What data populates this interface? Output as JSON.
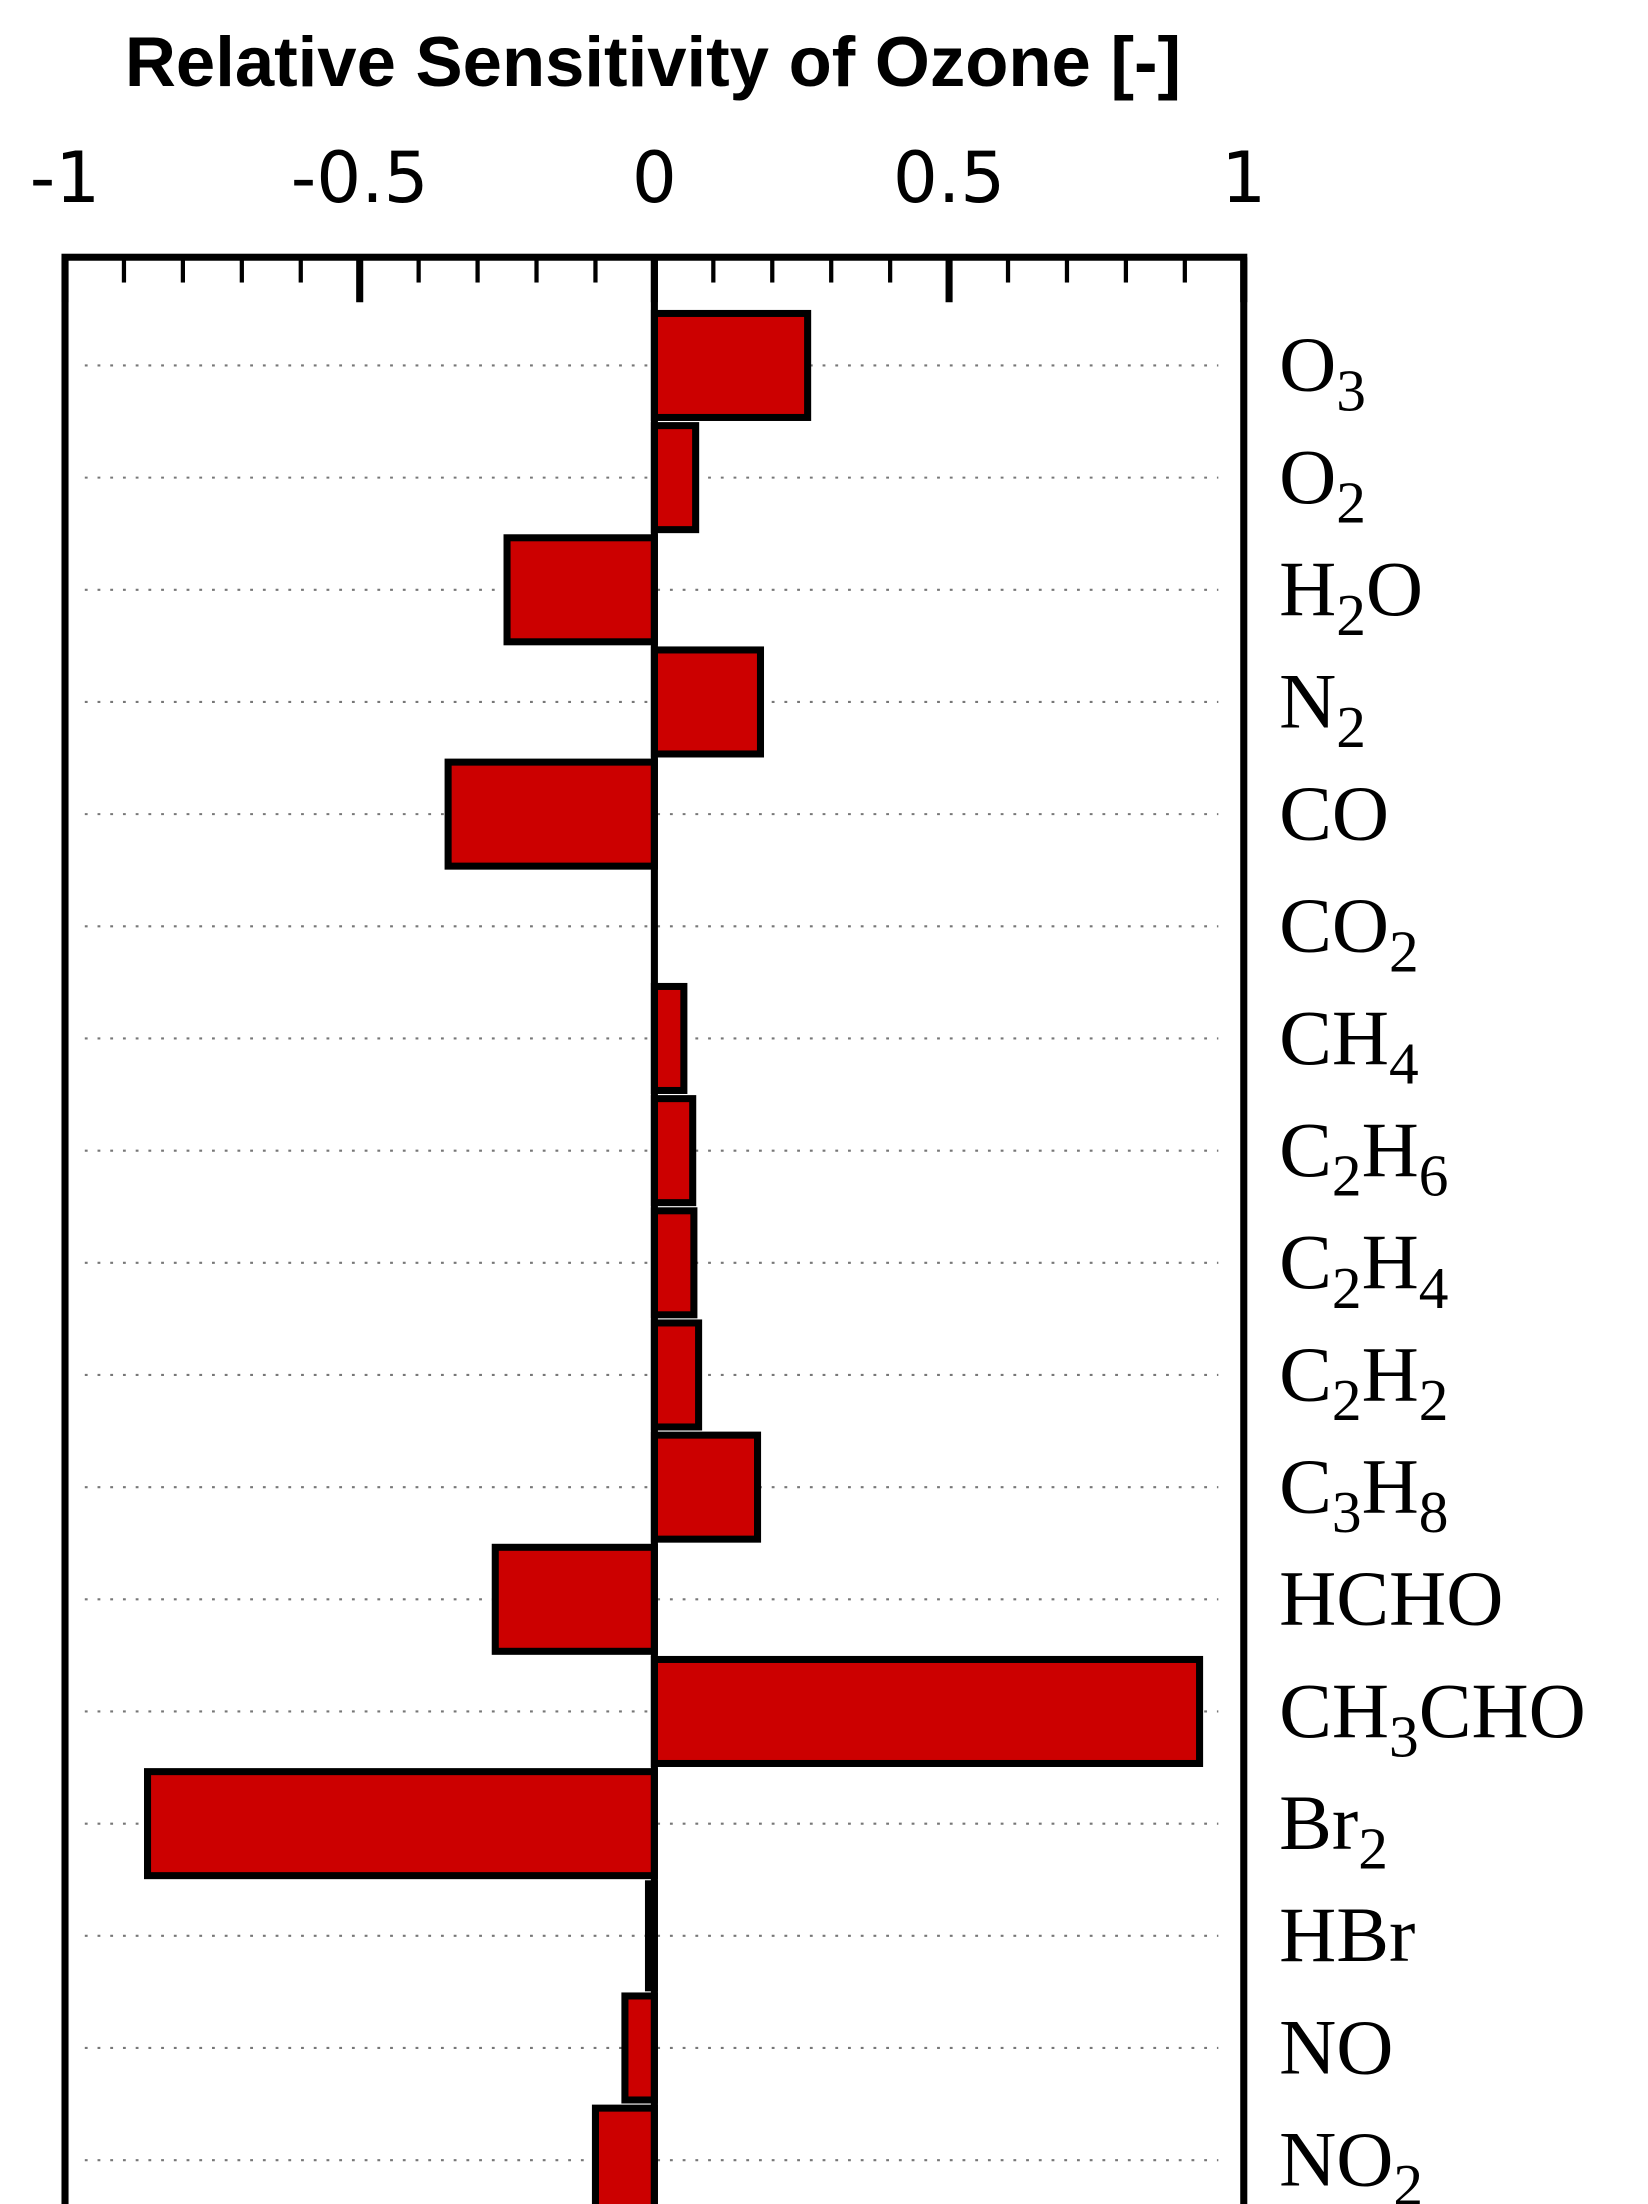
{
  "chart_data": {
    "type": "hbar",
    "title": "Relative Sensitivity of Ozone [-]",
    "categories": [
      "O3",
      "O2",
      "H2O",
      "N2",
      "CO",
      "CO2",
      "CH4",
      "C2H6",
      "C2H4",
      "C2H2",
      "C3H8",
      "HCHO",
      "CH3CHO",
      "Br2",
      "HBr",
      "NO",
      "NO2"
    ],
    "values": [
      0.26,
      0.07,
      -0.25,
      0.18,
      -0.35,
      0,
      0.05,
      0.065,
      0.067,
      0.075,
      0.175,
      -0.27,
      0.925,
      -0.86,
      -0.01,
      -0.05,
      -0.1
    ],
    "color": "#cc0000",
    "xlim": [
      -1,
      1
    ],
    "xticks": [
      -1,
      -0.5,
      0,
      0.5,
      1
    ],
    "xminorticks": [
      -0.9,
      -0.8,
      -0.7,
      -0.6,
      -0.4,
      -0.3,
      -0.2,
      -0.1,
      0.1,
      0.2,
      0.3,
      0.4,
      0.6,
      0.7,
      0.8,
      0.9
    ],
    "grid": true
  }
}
